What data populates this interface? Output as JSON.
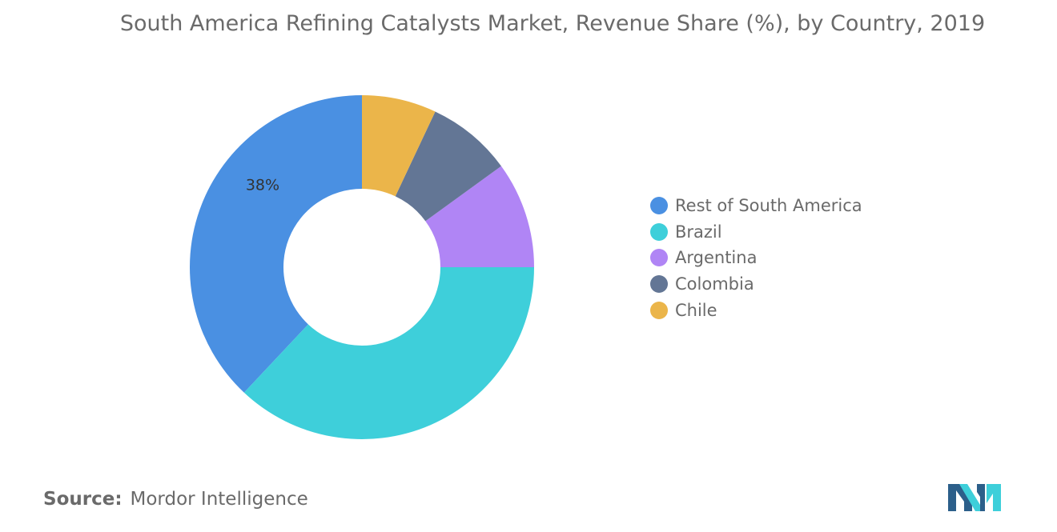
{
  "chart_data": {
    "type": "donut",
    "title": "South America Refining Catalysts Market, Revenue Share (%), by Country, 2019",
    "categories": [
      "Rest of South America",
      "Brazil",
      "Argentina",
      "Colombia",
      "Chile"
    ],
    "values": [
      38,
      37,
      10,
      8,
      7
    ],
    "colors": [
      "#4a90e2",
      "#3ecfda",
      "#b085f5",
      "#637695",
      "#ebb54a"
    ],
    "data_labels": [
      "38%",
      "",
      "",
      "",
      ""
    ],
    "start": "12 o'clock",
    "direction": "counterclockwise",
    "legend_position": "right"
  },
  "source": {
    "label": "Source:",
    "text": "Mordor Intelligence"
  },
  "logo": {
    "icon": "mordor-intelligence-logo",
    "colors": [
      "#2c5f8a",
      "#3ecfda"
    ]
  }
}
